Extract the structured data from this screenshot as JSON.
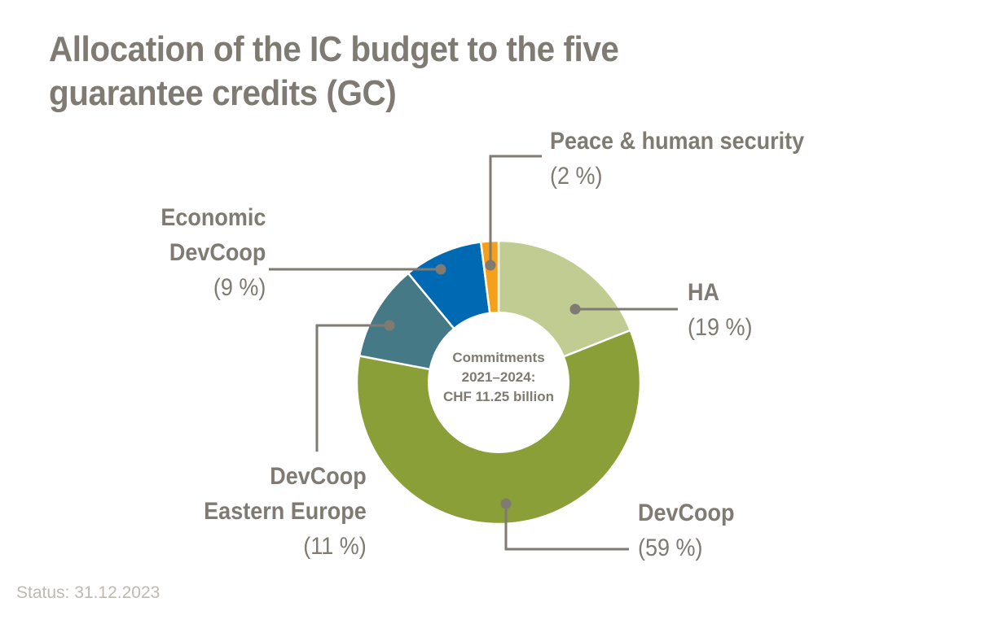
{
  "title": {
    "line1": "Allocation of the IC budget to the five",
    "line2": "guarantee credits (GC)"
  },
  "center_label": {
    "line1": "Commitments",
    "line2": "2021–2024:",
    "line3": "CHF 11.25 billion"
  },
  "labels": {
    "peace": {
      "name": "Peace & human security",
      "pct": "(2 %)"
    },
    "economic": {
      "name1": "Economic",
      "name2": "DevCoop",
      "pct": "(9 %)"
    },
    "ha": {
      "name": "HA",
      "pct": "(19 %)"
    },
    "eastern": {
      "name1": "DevCoop",
      "name2": "Eastern Europe",
      "pct": "(11 %)"
    },
    "devcoop": {
      "name": "DevCoop",
      "pct": "(59 %)"
    }
  },
  "status": "Status: 31.12.2023",
  "colors": {
    "text": "#7f7a72",
    "leader": "#7f7a72",
    "status": "#bdb9b3"
  },
  "chart_data": {
    "type": "pie",
    "subtype": "donut",
    "title": "Allocation of the IC budget to the five guarantee credits (GC)",
    "center_text": "Commitments 2021–2024: CHF 11.25 billion",
    "categories": [
      "HA",
      "DevCoop",
      "DevCoop Eastern Europe",
      "Economic DevCoop",
      "Peace & human security"
    ],
    "values": [
      19,
      59,
      11,
      9,
      2
    ],
    "unit": "%",
    "colors": [
      "#c0cc92",
      "#8a9f38",
      "#457985",
      "#0069b4",
      "#f5a01a"
    ],
    "start_angle": "12 o'clock, clockwise",
    "legend": "none (leader-line labels)",
    "footnote": "Status: 31.12.2023"
  }
}
